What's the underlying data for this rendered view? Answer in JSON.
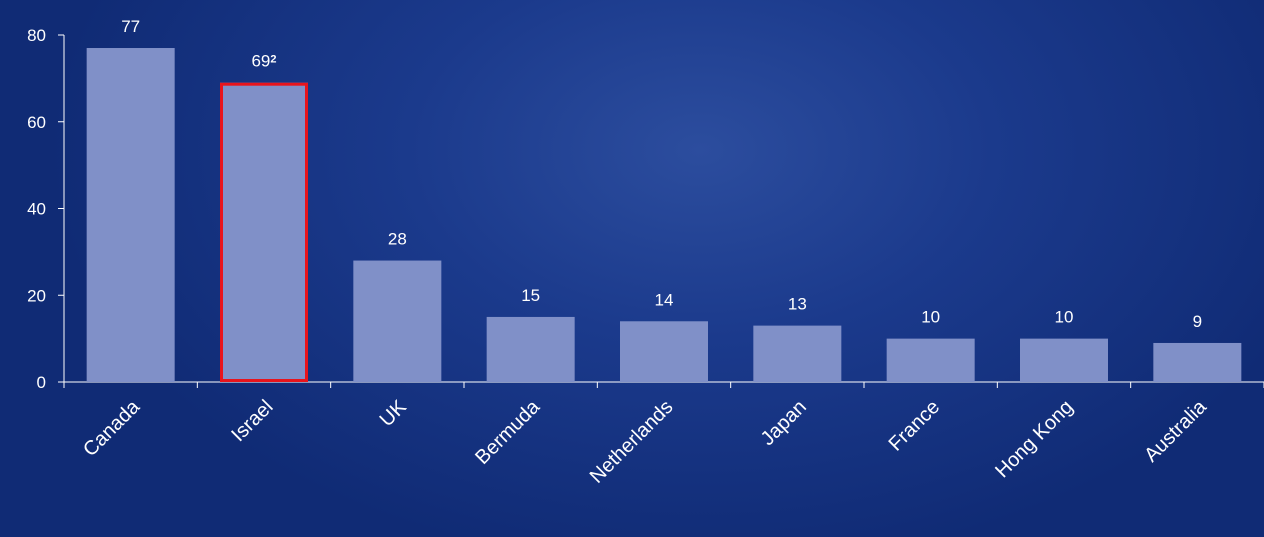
{
  "chart_data": {
    "type": "bar",
    "categories": [
      "Canada",
      "Israel",
      "UK",
      "Bermuda",
      "Netherlands",
      "Japan",
      "France",
      "Hong Kong",
      "Australia"
    ],
    "values": [
      77,
      69,
      28,
      15,
      14,
      13,
      10,
      10,
      9
    ],
    "data_labels": [
      "77",
      "69",
      "28",
      "15",
      "14",
      "13",
      "10",
      "10",
      "9"
    ],
    "footnote_marks": [
      "",
      "2",
      "",
      "",
      "",
      "",
      "",
      "",
      ""
    ],
    "highlighted": [
      false,
      true,
      false,
      false,
      false,
      false,
      false,
      false,
      false
    ],
    "ylim": [
      0,
      80
    ],
    "yticks": [
      0,
      20,
      40,
      60,
      80
    ],
    "grid": false,
    "legend": "none",
    "title": "",
    "xlabel": "",
    "ylabel": "",
    "colors": {
      "bar": "#8090c8",
      "highlight_border": "#e8141c",
      "axis": "#ffffff",
      "text": "#ffffff"
    }
  }
}
